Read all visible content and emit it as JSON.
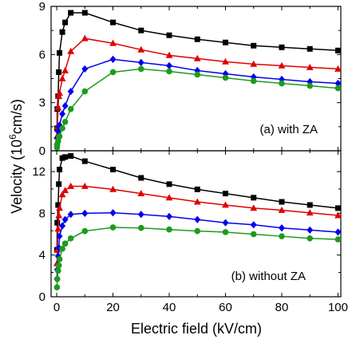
{
  "chart_data": [
    {
      "type": "line",
      "panel_label": "(a) with ZA",
      "xlabel_text": "Electric field (kV/cm)",
      "ylabel_prefix": "Velocity (10",
      "ylabel_sup": "6",
      "ylabel_suffix": "cm/s)",
      "xlim": [
        -2,
        101
      ],
      "ylim": [
        0,
        9
      ],
      "yticks": [
        "0",
        "3",
        "6",
        "9"
      ],
      "xticks": [
        "0",
        "20",
        "40",
        "60",
        "80",
        "100"
      ],
      "x": [
        0.1,
        0.2,
        0.5,
        0.75,
        1,
        2,
        3,
        5,
        10,
        20,
        30,
        40,
        50,
        60,
        70,
        80,
        90,
        100
      ],
      "series": [
        {
          "color": "#000000",
          "marker": "square",
          "values": [
            1.4,
            2.6,
            3.4,
            4.9,
            6.1,
            7.4,
            8.0,
            8.6,
            8.6,
            8.0,
            7.5,
            7.2,
            6.95,
            6.75,
            6.55,
            6.45,
            6.35,
            6.25
          ]
        },
        {
          "color": "#e00000",
          "marker": "triangle",
          "values": [
            0.9,
            1.5,
            2.7,
            3.4,
            3.6,
            4.5,
            5.0,
            6.2,
            7.0,
            6.7,
            6.3,
            5.95,
            5.75,
            5.55,
            5.4,
            5.3,
            5.2,
            5.1
          ]
        },
        {
          "color": "#0000ee",
          "marker": "diamond",
          "values": [
            0.4,
            0.8,
            1.2,
            1.5,
            1.6,
            2.3,
            2.8,
            3.7,
            5.1,
            5.7,
            5.5,
            5.3,
            5.0,
            4.8,
            4.6,
            4.45,
            4.3,
            4.2
          ]
        },
        {
          "color": "#1e9a1e",
          "marker": "circle",
          "values": [
            0.2,
            0.4,
            0.6,
            0.85,
            0.9,
            1.4,
            1.8,
            2.6,
            3.7,
            4.9,
            5.1,
            4.95,
            4.75,
            4.55,
            4.35,
            4.2,
            4.05,
            3.9
          ]
        }
      ]
    },
    {
      "type": "line",
      "panel_label": "(b) without ZA",
      "xlim": [
        -2,
        101
      ],
      "ylim": [
        0,
        14
      ],
      "yticks": [
        "0",
        "4",
        "8",
        "12"
      ],
      "xticks": [
        "0",
        "20",
        "40",
        "60",
        "80",
        "100"
      ],
      "x": [
        0.1,
        0.2,
        0.5,
        0.75,
        1,
        2,
        3,
        5,
        10,
        20,
        30,
        40,
        50,
        60,
        70,
        80,
        90,
        100
      ],
      "series": [
        {
          "color": "#000000",
          "marker": "square",
          "values": [
            4.5,
            7.1,
            8.8,
            10.8,
            12.2,
            13.3,
            13.4,
            13.5,
            13.0,
            12.2,
            11.4,
            10.8,
            10.3,
            9.9,
            9.5,
            9.1,
            8.8,
            8.5
          ]
        },
        {
          "color": "#e00000",
          "marker": "triangle",
          "values": [
            3.2,
            4.5,
            6.5,
            7.8,
            8.5,
            9.8,
            10.2,
            10.6,
            10.6,
            10.3,
            9.9,
            9.5,
            9.1,
            8.8,
            8.5,
            8.3,
            8.05,
            7.8
          ]
        },
        {
          "color": "#0000ee",
          "marker": "diamond",
          "values": [
            1.7,
            2.6,
            3.9,
            4.7,
            5.8,
            6.8,
            7.4,
            7.9,
            8.0,
            8.05,
            7.9,
            7.7,
            7.4,
            7.1,
            6.9,
            6.6,
            6.4,
            6.2
          ]
        },
        {
          "color": "#1e9a1e",
          "marker": "circle",
          "values": [
            0.9,
            1.7,
            2.5,
            3.0,
            3.6,
            4.6,
            5.1,
            5.6,
            6.3,
            6.65,
            6.6,
            6.45,
            6.3,
            6.2,
            6.0,
            5.8,
            5.6,
            5.5
          ]
        }
      ]
    }
  ]
}
